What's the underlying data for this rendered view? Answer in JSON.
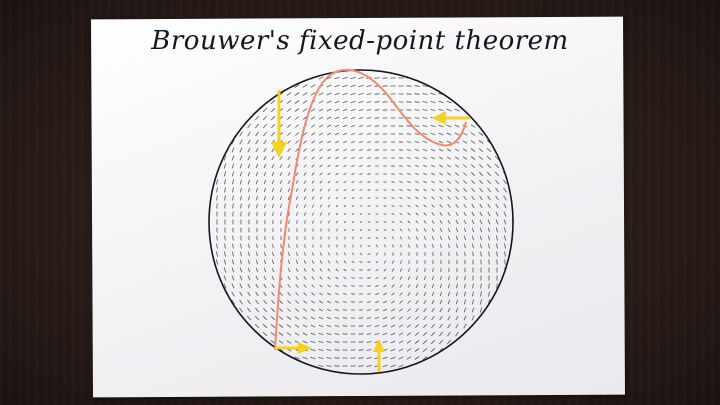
{
  "photo": {
    "title": "Brouwer's fixed-point theorem"
  },
  "colors": {
    "curve": "#f08a6c",
    "arrow": "#f4d21e",
    "ink": "#15151f",
    "field": "#1c1c24"
  },
  "icons": [
    "yellow-arrow-down",
    "yellow-arrow-left",
    "yellow-arrow-right",
    "yellow-arrow-up"
  ]
}
